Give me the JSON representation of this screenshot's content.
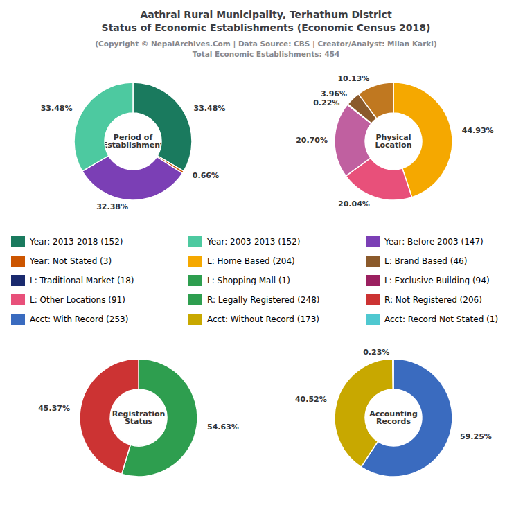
{
  "title": "Aathrai Rural Municipality, Terhathum District\nStatus of Economic Establishments (Economic Census 2018)",
  "subtitle": "(Copyright © NepalArchives.Com | Data Source: CBS | Creator/Analyst: Milan Karki)\nTotal Economic Establishments: 454",
  "legend_items": [
    {
      "label": "Year: 2013-2018 (152)",
      "color": "#1a7a5e"
    },
    {
      "label": "Year: 2003-2013 (152)",
      "color": "#4dc9a0"
    },
    {
      "label": "Year: Before 2003 (147)",
      "color": "#7b3fb5"
    },
    {
      "label": "Year: Not Stated (3)",
      "color": "#cc5500"
    },
    {
      "label": "L: Home Based (204)",
      "color": "#f5a800"
    },
    {
      "label": "L: Brand Based (46)",
      "color": "#8b5a2b"
    },
    {
      "label": "L: Traditional Market (18)",
      "color": "#1a2a6e"
    },
    {
      "label": "L: Shopping Mall (1)",
      "color": "#2e9e4f"
    },
    {
      "label": "L: Exclusive Building (94)",
      "color": "#9b2060"
    },
    {
      "label": "L: Other Locations (91)",
      "color": "#e8507a"
    },
    {
      "label": "R: Legally Registered (248)",
      "color": "#2e9e4f"
    },
    {
      "label": "R: Not Registered (206)",
      "color": "#cc3333"
    },
    {
      "label": "Acct: With Record (253)",
      "color": "#3a6bbf"
    },
    {
      "label": "Acct: Without Record (173)",
      "color": "#c8a800"
    },
    {
      "label": "Acct: Record Not Stated (1)",
      "color": "#4fc8d0"
    }
  ],
  "chart_data": [
    {
      "type": "pie",
      "title": "Period of\nEstablishment",
      "values": [
        33.48,
        0.66,
        32.38,
        33.48
      ],
      "value_labels": [
        "33.48%",
        "0.66%",
        "32.38%",
        "33.48%"
      ],
      "colors": [
        "#1a7a5e",
        "#cc5500",
        "#7b3fb5",
        "#4dc9a0"
      ],
      "data_labels": true
    },
    {
      "type": "pie",
      "title": "Physical\nLocation",
      "values": [
        44.93,
        20.04,
        20.7,
        0.22,
        3.96,
        10.13
      ],
      "value_labels": [
        "44.93%",
        "20.04%",
        "20.70%",
        "0.22%",
        "3.96%",
        "10.13%"
      ],
      "colors": [
        "#f5a800",
        "#e8507a",
        "#c060a0",
        "#1a2a6e",
        "#8b5a2b",
        "#c07820"
      ],
      "data_labels": true
    },
    {
      "type": "pie",
      "title": "Registration\nStatus",
      "values": [
        54.63,
        45.37
      ],
      "value_labels": [
        "54.63%",
        "45.37%"
      ],
      "colors": [
        "#2e9e4f",
        "#cc3333"
      ],
      "data_labels": true
    },
    {
      "type": "pie",
      "title": "Accounting\nRecords",
      "values": [
        59.25,
        40.52,
        0.23
      ],
      "value_labels": [
        "59.25%",
        "40.52%",
        "0.23%"
      ],
      "colors": [
        "#3a6bbf",
        "#c8a800",
        "#4fc8d0"
      ],
      "data_labels": true
    }
  ]
}
